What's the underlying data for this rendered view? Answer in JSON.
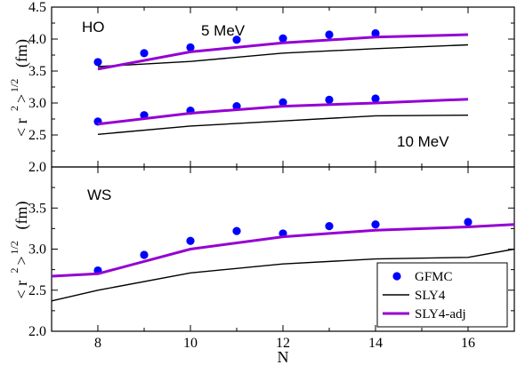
{
  "chart_data": [
    {
      "panel": "HO",
      "type": "scatter",
      "ylim": [
        2.0,
        4.5
      ],
      "yticks": [
        "2.0",
        "2.5",
        "3.0",
        "3.5",
        "4.0",
        "4.5"
      ],
      "xlim": [
        7,
        17
      ],
      "xticks": [],
      "ylabel": {
        "main": "< r",
        "sup": "2",
        "close": ">",
        "exp": "1/2",
        "unit": "(fm)"
      },
      "annotations": [
        {
          "text": "HO",
          "anchor": "top-left"
        },
        {
          "text": "5 MeV",
          "anchor": "above-upper-curves"
        },
        {
          "text": "10 MeV",
          "anchor": "below-lower-curves"
        }
      ],
      "series": [
        {
          "name": "GFMC",
          "group": "5 MeV",
          "kind": "markers",
          "x": [
            8,
            9,
            10,
            11,
            12,
            13,
            14
          ],
          "y": [
            3.64,
            3.78,
            3.87,
            3.99,
            4.01,
            4.07,
            4.09
          ]
        },
        {
          "name": "SLY4",
          "group": "5 MeV",
          "kind": "thin",
          "x": [
            8,
            10,
            12,
            14,
            16
          ],
          "y": [
            3.57,
            3.65,
            3.78,
            3.85,
            3.91
          ]
        },
        {
          "name": "SLY4-adj",
          "group": "5 MeV",
          "kind": "thick",
          "x": [
            8,
            10,
            12,
            14,
            16
          ],
          "y": [
            3.53,
            3.8,
            3.94,
            4.03,
            4.07
          ]
        },
        {
          "name": "GFMC",
          "group": "10 MeV",
          "kind": "markers",
          "x": [
            8,
            9,
            10,
            11,
            12,
            13,
            14
          ],
          "y": [
            2.71,
            2.81,
            2.88,
            2.95,
            3.01,
            3.05,
            3.07
          ]
        },
        {
          "name": "SLY4",
          "group": "10 MeV",
          "kind": "thin",
          "x": [
            8,
            10,
            12,
            14,
            16
          ],
          "y": [
            2.51,
            2.64,
            2.72,
            2.8,
            2.81
          ]
        },
        {
          "name": "SLY4-adj",
          "group": "10 MeV",
          "kind": "thick",
          "x": [
            8,
            10,
            12,
            14,
            16
          ],
          "y": [
            2.67,
            2.84,
            2.95,
            3.0,
            3.06
          ]
        }
      ]
    },
    {
      "panel": "WS",
      "type": "scatter",
      "ylim": [
        2.0,
        4.0
      ],
      "yticks": [
        "2.0",
        "2.5",
        "3.0",
        "3.5"
      ],
      "xlim": [
        7,
        17
      ],
      "xticks": [
        "8",
        "10",
        "12",
        "14",
        "16"
      ],
      "xlabel": "N",
      "ylabel": {
        "main": "< r",
        "sup": "2",
        "close": ">",
        "exp": "1/2",
        "unit": "(fm)"
      },
      "annotations": [
        {
          "text": "WS",
          "anchor": "top-left"
        }
      ],
      "legend": {
        "placement": "bottom-right",
        "entries": [
          {
            "label": "GFMC",
            "kind": "markers"
          },
          {
            "label": "SLY4",
            "kind": "thin"
          },
          {
            "label": "SLY4-adj",
            "kind": "thick"
          }
        ]
      },
      "series": [
        {
          "name": "GFMC",
          "kind": "markers",
          "x": [
            8,
            9,
            10,
            11,
            12,
            13,
            14,
            16
          ],
          "y": [
            2.74,
            2.93,
            3.1,
            3.22,
            3.19,
            3.28,
            3.3,
            3.33
          ]
        },
        {
          "name": "SLY4",
          "kind": "thin",
          "x": [
            7,
            8,
            10,
            12,
            14,
            16,
            17
          ],
          "y": [
            2.37,
            2.5,
            2.71,
            2.82,
            2.88,
            2.9,
            3.0
          ]
        },
        {
          "name": "SLY4-adj",
          "kind": "thick",
          "x": [
            7,
            8,
            10,
            12,
            14,
            16,
            17
          ],
          "y": [
            2.67,
            2.7,
            3.0,
            3.15,
            3.23,
            3.27,
            3.3
          ]
        }
      ]
    }
  ],
  "colors": {
    "markers": "#0000ff",
    "thin": "#000000",
    "thick": "#9400d3"
  }
}
